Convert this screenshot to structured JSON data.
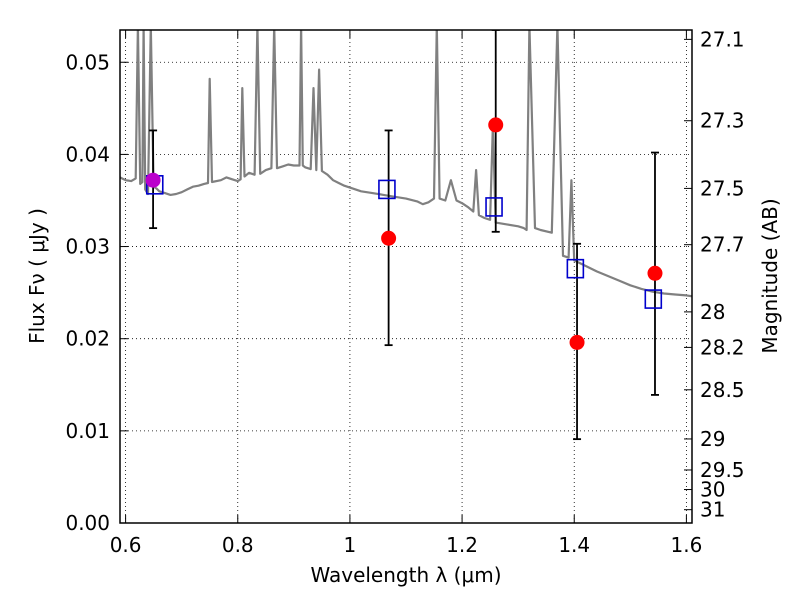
{
  "chart_data": {
    "type": "scatter",
    "xlabel": "Wavelength  λ (μm)",
    "ylabel": "Flux  Fν  ( μJy )",
    "ylabel_right": "Magnitude (AB)",
    "xlim": [
      0.59,
      1.61
    ],
    "ylim": [
      0.0,
      0.0535
    ],
    "grid": true,
    "x_ticks": [
      0.6,
      0.8,
      1.0,
      1.2,
      1.4,
      1.6
    ],
    "x_tick_labels": [
      "0.6",
      "0.8",
      "1",
      "1.2",
      "1.4",
      "1.6"
    ],
    "y_ticks": [
      0.0,
      0.01,
      0.02,
      0.03,
      0.04,
      0.05
    ],
    "y_tick_labels": [
      "0.00",
      "0.01",
      "0.02",
      "0.03",
      "0.04",
      "0.05"
    ],
    "mag_ticks": [
      27.1,
      27.3,
      27.5,
      27.7,
      28,
      28.2,
      28.5,
      29,
      29.5,
      30,
      31
    ],
    "mag_tick_labels": [
      "27.1",
      "27.3",
      "27.5",
      "27.7",
      "28",
      "28.2",
      "28.5",
      "29",
      "29.5",
      "30",
      "31"
    ],
    "series": [
      {
        "marker": "filled-circle",
        "color": "#ff0000",
        "points": [
          {
            "x": 0.649,
            "y": 0.0372
          },
          {
            "x": 1.069,
            "y": 0.0309
          },
          {
            "x": 1.26,
            "y": 0.0432
          },
          {
            "x": 1.405,
            "y": 0.0196
          },
          {
            "x": 1.544,
            "y": 0.0271
          }
        ],
        "errors": [
          {
            "x": 0.649,
            "low": 0.032,
            "high": 0.0426
          },
          {
            "x": 1.069,
            "low": 0.0193,
            "high": 0.0426
          },
          {
            "x": 1.26,
            "low": 0.0316,
            "high": 0.0535
          },
          {
            "x": 1.405,
            "low": 0.0091,
            "high": 0.0303
          },
          {
            "x": 1.544,
            "low": 0.0139,
            "high": 0.0402
          }
        ]
      },
      {
        "marker": "open-square",
        "color": "#0000cc",
        "points": [
          {
            "x": 0.652,
            "y": 0.0367
          },
          {
            "x": 1.066,
            "y": 0.0362
          },
          {
            "x": 1.257,
            "y": 0.0343
          },
          {
            "x": 1.402,
            "y": 0.0276
          },
          {
            "x": 1.541,
            "y": 0.0243
          }
        ]
      },
      {
        "marker": "spectrum-line",
        "color": "#808080",
        "points": [
          {
            "x": 0.59,
            "y": 0.0375
          },
          {
            "x": 0.6,
            "y": 0.0372
          },
          {
            "x": 0.61,
            "y": 0.0371
          },
          {
            "x": 0.618,
            "y": 0.0374
          },
          {
            "x": 0.622,
            "y": 0.054
          },
          {
            "x": 0.626,
            "y": 0.0368
          },
          {
            "x": 0.63,
            "y": 0.037
          },
          {
            "x": 0.632,
            "y": 0.054
          },
          {
            "x": 0.635,
            "y": 0.0362
          },
          {
            "x": 0.64,
            "y": 0.0357
          },
          {
            "x": 0.645,
            "y": 0.054
          },
          {
            "x": 0.65,
            "y": 0.0365
          },
          {
            "x": 0.655,
            "y": 0.0363
          },
          {
            "x": 0.66,
            "y": 0.036
          },
          {
            "x": 0.67,
            "y": 0.0358
          },
          {
            "x": 0.68,
            "y": 0.0356
          },
          {
            "x": 0.69,
            "y": 0.0357
          },
          {
            "x": 0.7,
            "y": 0.0359
          },
          {
            "x": 0.71,
            "y": 0.0362
          },
          {
            "x": 0.72,
            "y": 0.0365
          },
          {
            "x": 0.73,
            "y": 0.0366
          },
          {
            "x": 0.74,
            "y": 0.0368
          },
          {
            "x": 0.747,
            "y": 0.0369
          },
          {
            "x": 0.75,
            "y": 0.0482
          },
          {
            "x": 0.754,
            "y": 0.037
          },
          {
            "x": 0.77,
            "y": 0.0372
          },
          {
            "x": 0.78,
            "y": 0.0375
          },
          {
            "x": 0.79,
            "y": 0.0373
          },
          {
            "x": 0.8,
            "y": 0.0371
          },
          {
            "x": 0.805,
            "y": 0.0373
          },
          {
            "x": 0.808,
            "y": 0.0472
          },
          {
            "x": 0.812,
            "y": 0.0376
          },
          {
            "x": 0.82,
            "y": 0.038
          },
          {
            "x": 0.83,
            "y": 0.0378
          },
          {
            "x": 0.835,
            "y": 0.054
          },
          {
            "x": 0.84,
            "y": 0.0379
          },
          {
            "x": 0.85,
            "y": 0.0383
          },
          {
            "x": 0.86,
            "y": 0.0385
          },
          {
            "x": 0.865,
            "y": 0.054
          },
          {
            "x": 0.87,
            "y": 0.0385
          },
          {
            "x": 0.88,
            "y": 0.0387
          },
          {
            "x": 0.89,
            "y": 0.0389
          },
          {
            "x": 0.9,
            "y": 0.0388
          },
          {
            "x": 0.91,
            "y": 0.0388
          },
          {
            "x": 0.913,
            "y": 0.054
          },
          {
            "x": 0.916,
            "y": 0.0388
          },
          {
            "x": 0.92,
            "y": 0.0386
          },
          {
            "x": 0.93,
            "y": 0.0384
          },
          {
            "x": 0.935,
            "y": 0.0472
          },
          {
            "x": 0.94,
            "y": 0.0383
          },
          {
            "x": 0.945,
            "y": 0.0492
          },
          {
            "x": 0.95,
            "y": 0.0382
          },
          {
            "x": 0.96,
            "y": 0.0378
          },
          {
            "x": 0.97,
            "y": 0.0372
          },
          {
            "x": 0.98,
            "y": 0.0369
          },
          {
            "x": 0.99,
            "y": 0.0366
          },
          {
            "x": 1.0,
            "y": 0.0364
          },
          {
            "x": 1.02,
            "y": 0.036
          },
          {
            "x": 1.04,
            "y": 0.0358
          },
          {
            "x": 1.06,
            "y": 0.0356
          },
          {
            "x": 1.08,
            "y": 0.0354
          },
          {
            "x": 1.1,
            "y": 0.0352
          },
          {
            "x": 1.12,
            "y": 0.0349
          },
          {
            "x": 1.13,
            "y": 0.0346
          },
          {
            "x": 1.14,
            "y": 0.0348
          },
          {
            "x": 1.15,
            "y": 0.0352
          },
          {
            "x": 1.155,
            "y": 0.054
          },
          {
            "x": 1.16,
            "y": 0.0352
          },
          {
            "x": 1.17,
            "y": 0.035
          },
          {
            "x": 1.18,
            "y": 0.0372
          },
          {
            "x": 1.19,
            "y": 0.035
          },
          {
            "x": 1.2,
            "y": 0.0347
          },
          {
            "x": 1.21,
            "y": 0.0343
          },
          {
            "x": 1.22,
            "y": 0.0338
          },
          {
            "x": 1.225,
            "y": 0.0383
          },
          {
            "x": 1.23,
            "y": 0.0334
          },
          {
            "x": 1.24,
            "y": 0.0331
          },
          {
            "x": 1.25,
            "y": 0.0329
          },
          {
            "x": 1.255,
            "y": 0.0432
          },
          {
            "x": 1.26,
            "y": 0.0326
          },
          {
            "x": 1.28,
            "y": 0.0324
          },
          {
            "x": 1.3,
            "y": 0.0322
          },
          {
            "x": 1.31,
            "y": 0.032
          },
          {
            "x": 1.315,
            "y": 0.0318
          },
          {
            "x": 1.32,
            "y": 0.054
          },
          {
            "x": 1.33,
            "y": 0.032
          },
          {
            "x": 1.34,
            "y": 0.0318
          },
          {
            "x": 1.36,
            "y": 0.0315
          },
          {
            "x": 1.37,
            "y": 0.054
          },
          {
            "x": 1.38,
            "y": 0.029
          },
          {
            "x": 1.39,
            "y": 0.0288
          },
          {
            "x": 1.395,
            "y": 0.0372
          },
          {
            "x": 1.4,
            "y": 0.0285
          },
          {
            "x": 1.42,
            "y": 0.0279
          },
          {
            "x": 1.44,
            "y": 0.0273
          },
          {
            "x": 1.46,
            "y": 0.0268
          },
          {
            "x": 1.48,
            "y": 0.0263
          },
          {
            "x": 1.5,
            "y": 0.0258
          },
          {
            "x": 1.52,
            "y": 0.0254
          },
          {
            "x": 1.54,
            "y": 0.0251
          },
          {
            "x": 1.56,
            "y": 0.0249
          },
          {
            "x": 1.58,
            "y": 0.0248
          },
          {
            "x": 1.6,
            "y": 0.0247
          },
          {
            "x": 1.61,
            "y": 0.0246
          }
        ]
      }
    ]
  }
}
